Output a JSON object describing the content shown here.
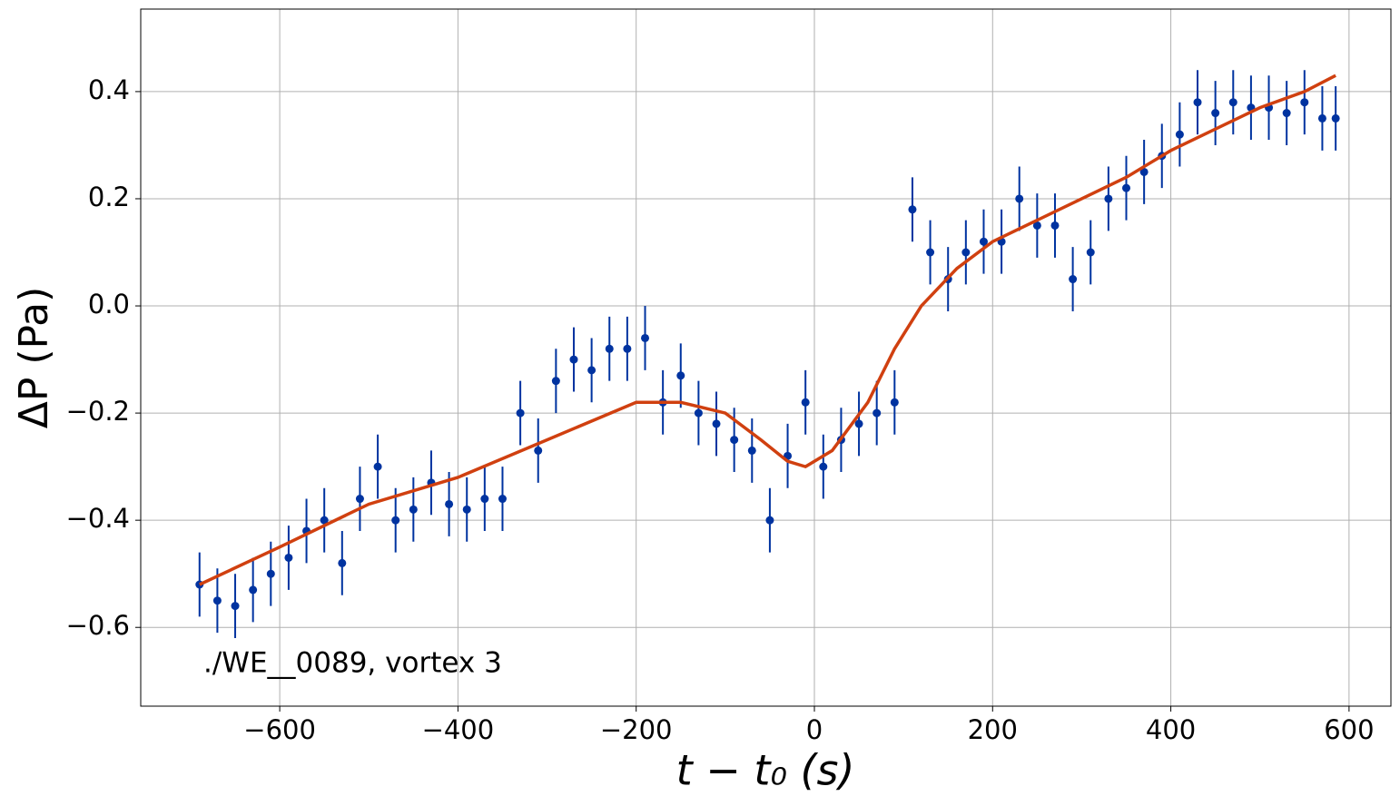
{
  "chart_data": {
    "type": "errorbar",
    "xlabel": "t − t₀ (s)",
    "ylabel": "ΔP (Pa)",
    "annotation": "./WE__0089, vortex 3",
    "xlim": [
      -756,
      647
    ],
    "ylim": [
      -0.747,
      0.554
    ],
    "xticks": [
      {
        "value": -600,
        "label": "−600"
      },
      {
        "value": -400,
        "label": "−400"
      },
      {
        "value": -200,
        "label": "−200"
      },
      0,
      200,
      400,
      600
    ],
    "yticks": [
      {
        "value": -0.6,
        "label": "−0.6"
      },
      {
        "value": -0.4,
        "label": "−0.4"
      },
      {
        "value": -0.2,
        "label": "−0.2"
      },
      {
        "value": 0,
        "label": "0.0"
      },
      0.2,
      0.4
    ],
    "grid": true,
    "series": [
      {
        "color": "#0033a0",
        "x": [
          -690,
          -670,
          -650,
          -630,
          -610,
          -590,
          -570,
          -550,
          -530,
          -510,
          -490,
          -470,
          -450,
          -430,
          -410,
          -390,
          -370,
          -350,
          -330,
          -310,
          -290,
          -270,
          -250,
          -230,
          -210,
          -190,
          -170,
          -150,
          -130,
          -110,
          -90,
          -70,
          -50,
          -30,
          -10,
          10,
          30,
          50,
          70,
          90,
          110,
          130,
          150,
          170,
          190,
          210,
          230,
          250,
          270,
          290,
          310,
          330,
          350,
          370,
          390,
          410,
          430,
          450,
          470,
          490,
          510,
          530,
          550,
          570,
          585
        ],
        "values": [
          -0.52,
          -0.55,
          -0.56,
          -0.53,
          -0.5,
          -0.47,
          -0.42,
          -0.4,
          -0.48,
          -0.36,
          -0.3,
          -0.4,
          -0.38,
          -0.33,
          -0.37,
          -0.38,
          -0.36,
          -0.36,
          -0.2,
          -0.27,
          -0.14,
          -0.1,
          -0.12,
          -0.08,
          -0.08,
          -0.06,
          -0.18,
          -0.13,
          -0.2,
          -0.22,
          -0.25,
          -0.27,
          -0.4,
          -0.28,
          -0.18,
          -0.3,
          -0.25,
          -0.22,
          -0.2,
          -0.18,
          0.18,
          0.1,
          0.05,
          0.1,
          0.12,
          0.12,
          0.2,
          0.15,
          0.15,
          0.05,
          0.1,
          0.2,
          0.22,
          0.25,
          0.28,
          0.32,
          0.38,
          0.36,
          0.38,
          0.37,
          0.37,
          0.36,
          0.38,
          0.35,
          0.35
        ],
        "errors": [
          0.06,
          0.06,
          0.06,
          0.06,
          0.06,
          0.06,
          0.06,
          0.06,
          0.06,
          0.06,
          0.06,
          0.06,
          0.06,
          0.06,
          0.06,
          0.06,
          0.06,
          0.06,
          0.06,
          0.06,
          0.06,
          0.06,
          0.06,
          0.06,
          0.06,
          0.06,
          0.06,
          0.06,
          0.06,
          0.06,
          0.06,
          0.06,
          0.06,
          0.06,
          0.06,
          0.06,
          0.06,
          0.06,
          0.06,
          0.06,
          0.06,
          0.06,
          0.06,
          0.06,
          0.06,
          0.06,
          0.06,
          0.06,
          0.06,
          0.06,
          0.06,
          0.06,
          0.06,
          0.06,
          0.06,
          0.06,
          0.06,
          0.06,
          0.06,
          0.06,
          0.06,
          0.06,
          0.06,
          0.06,
          0.06
        ]
      },
      {
        "color": "#d04010",
        "line": true,
        "x": [
          -690,
          -600,
          -500,
          -400,
          -300,
          -200,
          -150,
          -100,
          -60,
          -30,
          -10,
          20,
          60,
          90,
          120,
          160,
          200,
          250,
          300,
          350,
          400,
          450,
          500,
          550,
          585
        ],
        "values": [
          -0.52,
          -0.45,
          -0.37,
          -0.32,
          -0.25,
          -0.18,
          -0.18,
          -0.2,
          -0.25,
          -0.29,
          -0.3,
          -0.27,
          -0.18,
          -0.08,
          0,
          0.07,
          0.12,
          0.16,
          0.2,
          0.24,
          0.29,
          0.33,
          0.37,
          0.4,
          0.43
        ]
      }
    ]
  }
}
